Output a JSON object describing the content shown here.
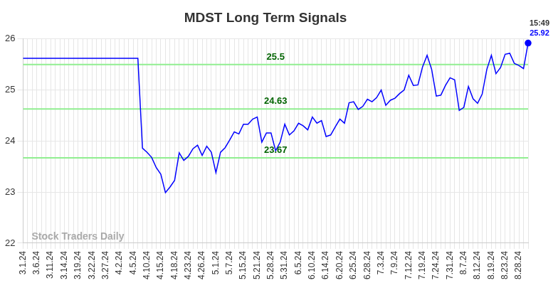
{
  "chart_data": {
    "type": "line",
    "title": "MDST Long Term Signals",
    "categories": [
      "3.1.24",
      null,
      null,
      "3.6.24",
      null,
      null,
      "3.11.24",
      null,
      null,
      "3.14.24",
      null,
      null,
      "3.19.24",
      null,
      null,
      "3.22.24",
      null,
      null,
      "3.27.24",
      null,
      null,
      "4.2.24",
      null,
      null,
      "4.5.24",
      null,
      null,
      "4.10.24",
      null,
      null,
      "4.15.24",
      null,
      null,
      "4.18.24",
      null,
      null,
      "4.23.24",
      null,
      null,
      "4.26.24",
      null,
      null,
      "5.1.24",
      null,
      null,
      "5.7.24",
      null,
      null,
      "5.15.24",
      null,
      null,
      "5.21.24",
      null,
      null,
      "5.28.24",
      null,
      null,
      "5.31.24",
      null,
      null,
      "6.5.24",
      null,
      null,
      "6.10.24",
      null,
      null,
      "6.14.24",
      null,
      null,
      "6.20.24",
      null,
      null,
      "6.25.24",
      null,
      null,
      "6.28.24",
      null,
      null,
      "7.3.24",
      null,
      null,
      "7.9.24",
      null,
      null,
      "7.12.24",
      null,
      null,
      "7.19.24",
      null,
      null,
      "7.24.24",
      null,
      null,
      "7.31.24",
      null,
      null,
      "8.7.24",
      null,
      null,
      "8.12.24",
      null,
      null,
      "8.19.24",
      null,
      null,
      "8.23.24",
      null,
      null,
      "8.28.24",
      null,
      null
    ],
    "values": [
      25.62,
      25.62,
      25.62,
      25.62,
      25.62,
      25.62,
      25.62,
      25.62,
      25.62,
      25.62,
      25.62,
      25.62,
      25.62,
      25.62,
      25.62,
      25.62,
      25.62,
      25.62,
      25.62,
      25.62,
      25.62,
      25.62,
      25.62,
      25.62,
      25.62,
      25.62,
      23.86,
      23.78,
      23.68,
      23.48,
      23.35,
      22.99,
      23.1,
      23.23,
      23.77,
      23.62,
      23.7,
      23.85,
      23.92,
      23.72,
      23.9,
      23.78,
      23.38,
      23.78,
      23.87,
      24.02,
      24.18,
      24.14,
      24.33,
      24.33,
      24.43,
      24.47,
      23.98,
      24.16,
      24.16,
      23.81,
      23.98,
      24.33,
      24.12,
      24.2,
      24.35,
      24.3,
      24.22,
      24.47,
      24.35,
      24.4,
      24.09,
      24.12,
      24.28,
      24.43,
      24.35,
      24.75,
      24.77,
      24.62,
      24.68,
      24.82,
      24.77,
      24.85,
      25.0,
      24.7,
      24.8,
      24.84,
      24.93,
      25.0,
      25.29,
      25.09,
      25.1,
      25.45,
      25.68,
      25.4,
      24.88,
      24.9,
      25.09,
      25.24,
      25.2,
      24.6,
      24.66,
      25.07,
      24.83,
      24.74,
      24.92,
      25.4,
      25.68,
      25.32,
      25.44,
      25.7,
      25.72,
      25.52,
      25.48,
      25.42,
      25.92
    ],
    "color": "#0000ff",
    "ylim": [
      22,
      26
    ],
    "yticks": [
      22,
      23,
      24,
      25,
      26
    ],
    "grid": true,
    "reference_lines": [
      25.5,
      24.63,
      23.67
    ],
    "watermark": "Stock Traders Daily",
    "time_label": "15:49"
  }
}
